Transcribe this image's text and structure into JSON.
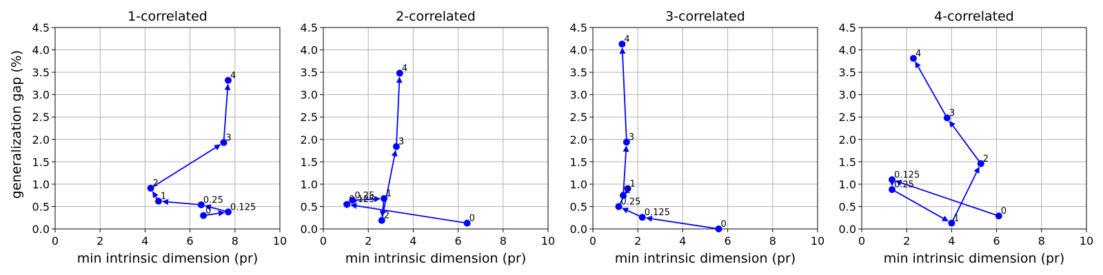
{
  "figure": {
    "ylabel": "generalization gap (%)",
    "xlabel": "min intrinsic dimension (pr)"
  },
  "colors": {
    "series": "#0000ff",
    "grid": "#b0b0b0"
  },
  "chart_data": [
    {
      "type": "line",
      "title": "1-correlated",
      "xlabel": "min intrinsic dimension (pr)",
      "ylabel": "generalization gap (%)",
      "xlim": [
        0,
        10
      ],
      "ylim": [
        0,
        4.5
      ],
      "xticks": [
        "0",
        "2",
        "4",
        "6",
        "8",
        "10"
      ],
      "yticks": [
        "0.0",
        "0.5",
        "1.0",
        "1.5",
        "2.0",
        "2.5",
        "3.0",
        "3.5",
        "4.0",
        "4.5"
      ],
      "grid": true,
      "points": [
        {
          "label": "0",
          "x": 6.6,
          "y": 0.3
        },
        {
          "label": "0.125",
          "x": 7.7,
          "y": 0.38
        },
        {
          "label": "0.25",
          "x": 6.5,
          "y": 0.54
        },
        {
          "label": "1",
          "x": 4.6,
          "y": 0.62
        },
        {
          "label": "2",
          "x": 4.25,
          "y": 0.91
        },
        {
          "label": "3",
          "x": 7.5,
          "y": 1.93
        },
        {
          "label": "4",
          "x": 7.7,
          "y": 3.32
        }
      ]
    },
    {
      "type": "line",
      "title": "2-correlated",
      "xlabel": "min intrinsic dimension (pr)",
      "ylabel": "",
      "xlim": [
        0,
        10
      ],
      "ylim": [
        0,
        4.5
      ],
      "xticks": [
        "0",
        "2",
        "4",
        "6",
        "8",
        "10"
      ],
      "yticks": [
        "0.0",
        "0.5",
        "1.0",
        "1.5",
        "2.0",
        "2.5",
        "3.0",
        "3.5",
        "4.0",
        "4.5"
      ],
      "grid": true,
      "points": [
        {
          "label": "0",
          "x": 6.4,
          "y": 0.13
        },
        {
          "label": "0.125",
          "x": 1.05,
          "y": 0.55
        },
        {
          "label": "0.25",
          "x": 1.3,
          "y": 0.64
        },
        {
          "label": "1",
          "x": 2.7,
          "y": 0.68
        },
        {
          "label": "2",
          "x": 2.6,
          "y": 0.19
        },
        {
          "label": "3",
          "x": 3.25,
          "y": 1.84
        },
        {
          "label": "4",
          "x": 3.4,
          "y": 3.48
        }
      ]
    },
    {
      "type": "line",
      "title": "3-correlated",
      "xlabel": "min intrinsic dimension (pr)",
      "ylabel": "",
      "xlim": [
        0,
        10
      ],
      "ylim": [
        0,
        4.5
      ],
      "xticks": [
        "0",
        "2",
        "4",
        "6",
        "8",
        "10"
      ],
      "yticks": [
        "0.0",
        "0.5",
        "1.0",
        "1.5",
        "2.0",
        "2.5",
        "3.0",
        "3.5",
        "4.0",
        "4.5"
      ],
      "grid": true,
      "points": [
        {
          "label": "0",
          "x": 5.6,
          "y": 0.0
        },
        {
          "label": "0.125",
          "x": 2.2,
          "y": 0.26
        },
        {
          "label": "0.25",
          "x": 1.15,
          "y": 0.5
        },
        {
          "label": "1",
          "x": 1.55,
          "y": 0.9
        },
        {
          "label": "2",
          "x": 1.35,
          "y": 0.75
        },
        {
          "label": "3",
          "x": 1.5,
          "y": 1.94
        },
        {
          "label": "4",
          "x": 1.3,
          "y": 4.13
        }
      ]
    },
    {
      "type": "line",
      "title": "4-correlated",
      "xlabel": "min intrinsic dimension (pr)",
      "ylabel": "",
      "xlim": [
        0,
        10
      ],
      "ylim": [
        0,
        4.5
      ],
      "xticks": [
        "0",
        "2",
        "4",
        "6",
        "8",
        "10"
      ],
      "yticks": [
        "0.0",
        "0.5",
        "1.0",
        "1.5",
        "2.0",
        "2.5",
        "3.0",
        "3.5",
        "4.0",
        "4.5"
      ],
      "grid": true,
      "points": [
        {
          "label": "0",
          "x": 6.1,
          "y": 0.29
        },
        {
          "label": "0.125",
          "x": 1.35,
          "y": 1.1
        },
        {
          "label": "0.25",
          "x": 1.35,
          "y": 0.88
        },
        {
          "label": "1",
          "x": 4.0,
          "y": 0.13
        },
        {
          "label": "2",
          "x": 5.3,
          "y": 1.46
        },
        {
          "label": "3",
          "x": 3.8,
          "y": 2.48
        },
        {
          "label": "4",
          "x": 2.3,
          "y": 3.81
        }
      ]
    }
  ]
}
